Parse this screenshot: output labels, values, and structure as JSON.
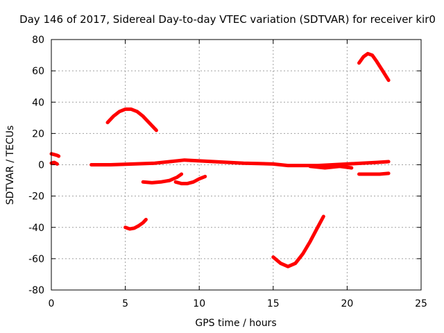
{
  "chart_data": {
    "type": "scatter",
    "title": "Day 146 of 2017, Sidereal Day-to-day VTEC variation (SDTVAR) for receiver kir0",
    "xlabel": "GPS time / hours",
    "ylabel": "SDTVAR / TECUs",
    "xlim": [
      0,
      25
    ],
    "ylim": [
      -80,
      80
    ],
    "xticks": [
      0,
      5,
      10,
      15,
      20,
      25
    ],
    "yticks": [
      -80,
      -60,
      -40,
      -20,
      0,
      20,
      40,
      60,
      80
    ],
    "grid": true,
    "marker_color": "#ff0000",
    "series": [
      {
        "x": [
          0.0,
          0.2,
          0.4,
          0.5
        ],
        "y": [
          7,
          6.5,
          6,
          5.5
        ]
      },
      {
        "x": [
          0.0,
          0.2,
          0.4
        ],
        "y": [
          1,
          1.5,
          0.5
        ]
      },
      {
        "x": [
          2.7,
          4,
          5.5,
          7,
          8,
          9,
          10,
          11,
          12,
          13,
          14,
          15,
          16,
          17,
          18,
          19,
          20,
          21,
          22,
          22.8
        ],
        "y": [
          0,
          0,
          0.5,
          1,
          2,
          3,
          2.5,
          2,
          1.5,
          1,
          0.8,
          0.5,
          -0.5,
          -0.5,
          -0.5,
          0,
          0.5,
          1,
          1.5,
          2
        ]
      },
      {
        "x": [
          3.8,
          4.2,
          4.6,
          5,
          5.4,
          5.8,
          6.2,
          6.6,
          7.1
        ],
        "y": [
          27,
          31,
          34,
          35.5,
          35.5,
          34,
          31,
          27,
          22
        ]
      },
      {
        "x": [
          5.0,
          5.3,
          5.6,
          5.9,
          6.2,
          6.4
        ],
        "y": [
          -40,
          -41,
          -40.5,
          -39,
          -37,
          -35
        ]
      },
      {
        "x": [
          6.2,
          6.8,
          7.4,
          8.0,
          8.5,
          8.8
        ],
        "y": [
          -11,
          -11.5,
          -11,
          -10,
          -8,
          -6
        ]
      },
      {
        "x": [
          8.4,
          8.8,
          9.2,
          9.6,
          10.0,
          10.4
        ],
        "y": [
          -11,
          -12,
          -12,
          -11,
          -9,
          -7.5
        ]
      },
      {
        "x": [
          15.0,
          15.5,
          16.0,
          16.5,
          17.0,
          17.5,
          18.0,
          18.4
        ],
        "y": [
          -59,
          -63,
          -65,
          -63,
          -57,
          -49,
          -40,
          -33
        ]
      },
      {
        "x": [
          17.5,
          18.5,
          19.5,
          20.3
        ],
        "y": [
          -1,
          -2,
          -1,
          -2
        ]
      },
      {
        "x": [
          20.8,
          21.5,
          22.2,
          22.8
        ],
        "y": [
          -6,
          -6,
          -6,
          -5.5
        ]
      },
      {
        "x": [
          20.8,
          21.1,
          21.4,
          21.7,
          22.0,
          22.4,
          22.8
        ],
        "y": [
          65,
          69,
          71,
          70,
          66,
          60,
          54
        ]
      }
    ]
  }
}
